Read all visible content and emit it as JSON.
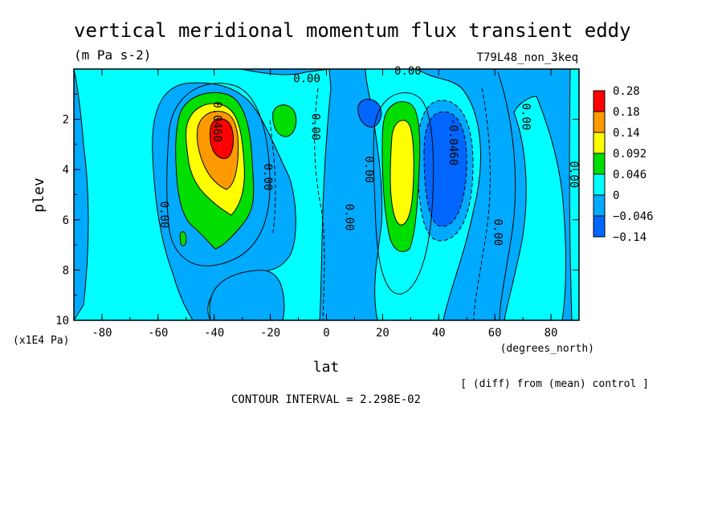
{
  "chart_data": {
    "type": "contour",
    "title": "vertical meridional momentum flux transient eddy",
    "units": "(m Pa s-2)",
    "run_label": "T79L48_non_3keq",
    "xlabel": "lat",
    "x_units": "(degrees_north)",
    "ylabel": "plev",
    "y_units": "(x1E4 Pa)",
    "xlim": [
      -90,
      90
    ],
    "ylim": [
      10,
      0
    ],
    "xticks": [
      -80,
      -60,
      -40,
      -20,
      0,
      20,
      40,
      60,
      80
    ],
    "xtick_labels": [
      "-80",
      "-60",
      "-40",
      "-20",
      "0",
      "20",
      "40",
      "60",
      "80"
    ],
    "yticks": [
      2,
      4,
      6,
      8,
      10
    ],
    "ytick_labels": [
      "2",
      "4",
      "6",
      "8",
      "10"
    ],
    "legend_levels": [
      "0.28",
      "0.18",
      "0.14",
      "0.092",
      "0.046",
      "0",
      "−0.046",
      "−0.14"
    ],
    "legend_colors": [
      "#ff0000",
      "#ff9900",
      "#ffff00",
      "#00dd00",
      "#00ffff",
      "#00aaff",
      "#0066ff"
    ],
    "background_color": "#00aaff",
    "contour_interval_text": "CONTOUR INTERVAL = 2.298E-02",
    "footnote": "[ (diff) from (mean) control ]",
    "features": [
      {
        "name": "sh-jet-eddy-max",
        "lat_center": -37,
        "plev_center": 2.9,
        "max_value": 0.28,
        "sign": "positive"
      },
      {
        "name": "nh-eddy-max",
        "lat_center": 28,
        "plev_center": 4.2,
        "max_value": 0.14,
        "sign": "positive"
      },
      {
        "name": "nh-eddy-min",
        "lat_center": 43,
        "plev_center": 3.8,
        "min_value": -0.14,
        "sign": "negative"
      },
      {
        "name": "sh-subtropical-min",
        "lat_center": 15,
        "plev_center": 1.7,
        "min_value": -0.046,
        "sign": "negative"
      },
      {
        "name": "sh-subtropical-max",
        "lat_center": -16,
        "plev_center": 2.0,
        "max_value": 0.046,
        "sign": "positive"
      }
    ],
    "contour_labels": [
      {
        "text": "0.0460",
        "lat": -39,
        "plev": 2.1
      },
      {
        "text": "0.00",
        "lat": -58,
        "plev": 5.8
      },
      {
        "text": "0.00",
        "lat": -21,
        "plev": 4.3
      },
      {
        "text": "0.00",
        "lat": -7,
        "plev": 0.4
      },
      {
        "text": "0.00",
        "lat": -4,
        "plev": 2.3
      },
      {
        "text": "0.00",
        "lat": 8,
        "plev": 5.9
      },
      {
        "text": "0.00",
        "lat": 15,
        "plev": 4.0
      },
      {
        "text": "0.00",
        "lat": 29,
        "plev": 0.1
      },
      {
        "text": "-0.0460",
        "lat": 45,
        "plev": 2.9
      },
      {
        "text": "0.00",
        "lat": 61,
        "plev": 6.5
      },
      {
        "text": "0.00",
        "lat": 71,
        "plev": 1.9
      },
      {
        "text": "0.00",
        "lat": 88,
        "plev": 4.2
      }
    ]
  }
}
